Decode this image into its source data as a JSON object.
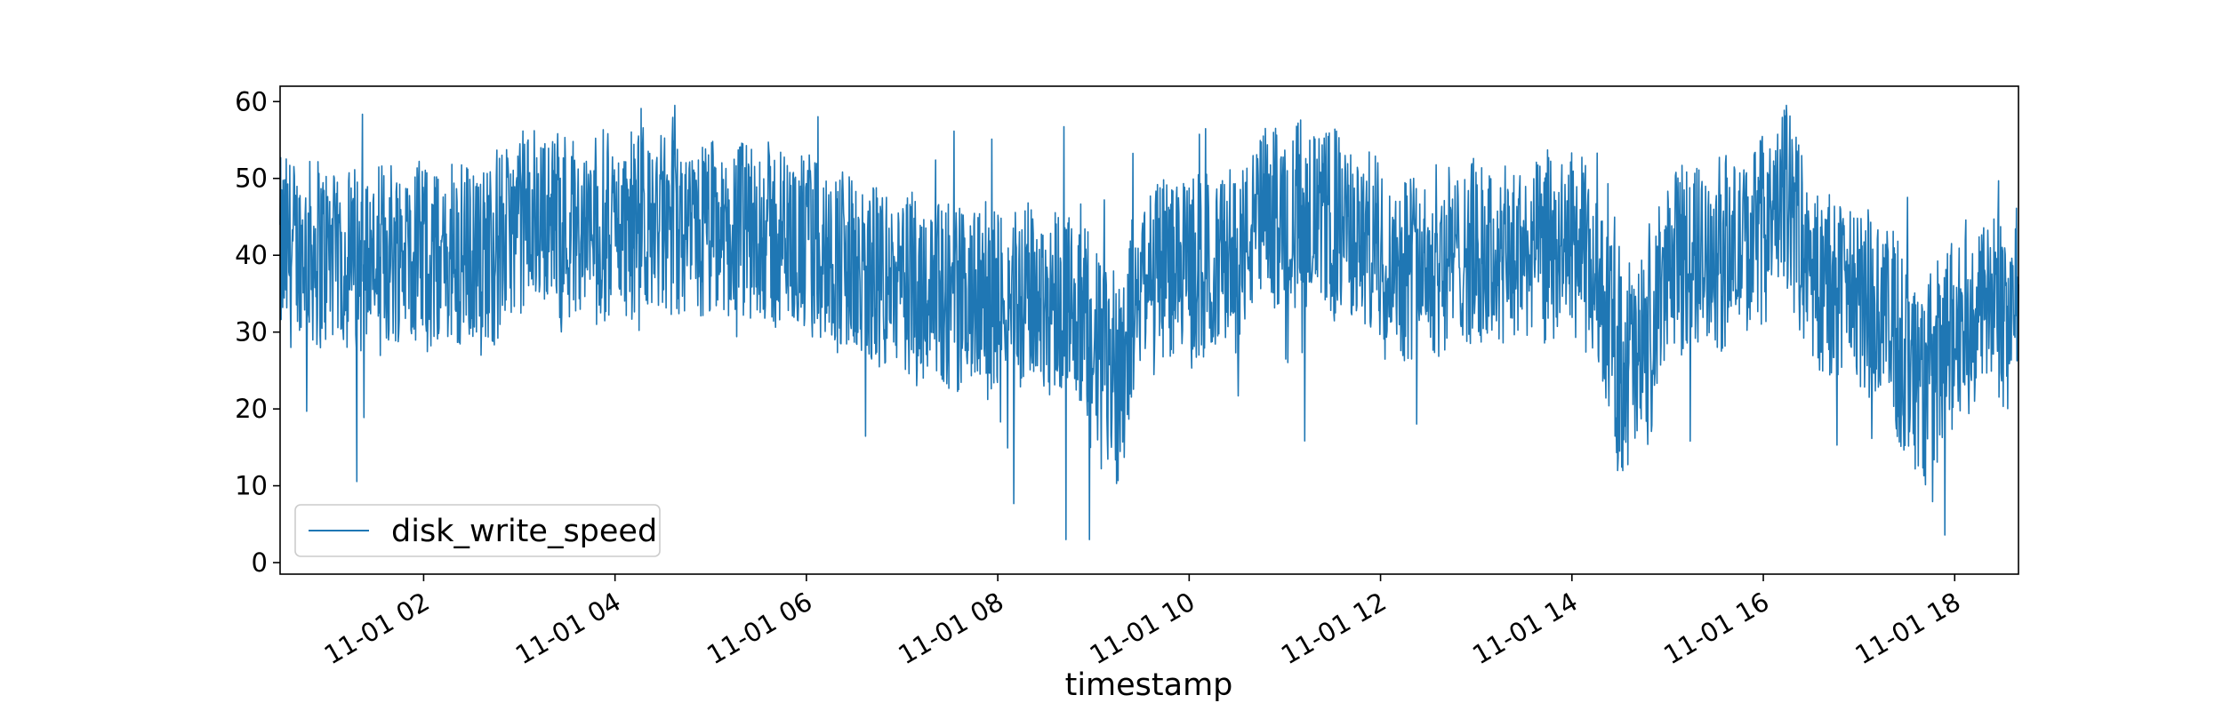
{
  "chart_data": {
    "type": "line",
    "title": "",
    "xlabel": "timestamp",
    "ylabel": "",
    "x_range": [
      "11-01 00:30",
      "11-01 18:40"
    ],
    "ylim": [
      -1.5,
      62
    ],
    "grid": false,
    "legend": {
      "location": "lower left",
      "entries": [
        "disk_write_speed"
      ]
    },
    "x_ticks": [
      "11-01 02",
      "11-01 04",
      "11-01 06",
      "11-01 08",
      "11-01 10",
      "11-01 12",
      "11-01 14",
      "11-01 16",
      "11-01 18"
    ],
    "y_ticks": [
      "0",
      "10",
      "20",
      "30",
      "40",
      "50",
      "60"
    ],
    "colors": {
      "series": "#1f77b4"
    },
    "series": [
      {
        "name": "disk_write_speed",
        "x": [
          "00:30",
          "00:45",
          "01:00",
          "01:15",
          "01:30",
          "01:45",
          "02:00",
          "02:15",
          "02:30",
          "02:45",
          "03:00",
          "03:15",
          "03:30",
          "03:45",
          "04:00",
          "04:15",
          "04:30",
          "04:45",
          "05:00",
          "05:15",
          "05:30",
          "05:45",
          "06:00",
          "06:15",
          "06:30",
          "06:45",
          "07:00",
          "07:15",
          "07:30",
          "07:45",
          "08:00",
          "08:15",
          "08:30",
          "08:45",
          "09:00",
          "09:15",
          "09:30",
          "09:45",
          "10:00",
          "10:15",
          "10:30",
          "10:45",
          "11:00",
          "11:15",
          "11:30",
          "11:45",
          "12:00",
          "12:15",
          "12:30",
          "12:45",
          "13:00",
          "13:15",
          "13:30",
          "13:45",
          "14:00",
          "14:15",
          "14:30",
          "14:45",
          "15:00",
          "15:15",
          "15:30",
          "15:45",
          "16:00",
          "16:15",
          "16:30",
          "16:45",
          "17:00",
          "17:15",
          "17:30",
          "17:45",
          "18:00",
          "18:15",
          "18:30",
          "18:40"
        ],
        "values": [
          40,
          41,
          40,
          39,
          40,
          41,
          40,
          39,
          40,
          41,
          44,
          45,
          44,
          43,
          44,
          43,
          44,
          42,
          43,
          42,
          43,
          42,
          41,
          40,
          38,
          37,
          36,
          36,
          35,
          34,
          34,
          35,
          34,
          35,
          26,
          25,
          37,
          39,
          38,
          38,
          40,
          44,
          45,
          46,
          44,
          42,
          40,
          39,
          39,
          40,
          40,
          39,
          40,
          41,
          42,
          37,
          27,
          25,
          39,
          40,
          40,
          41,
          43,
          48,
          37,
          36,
          34,
          33,
          27,
          22,
          30,
          34,
          33,
          29
        ]
      }
    ]
  }
}
